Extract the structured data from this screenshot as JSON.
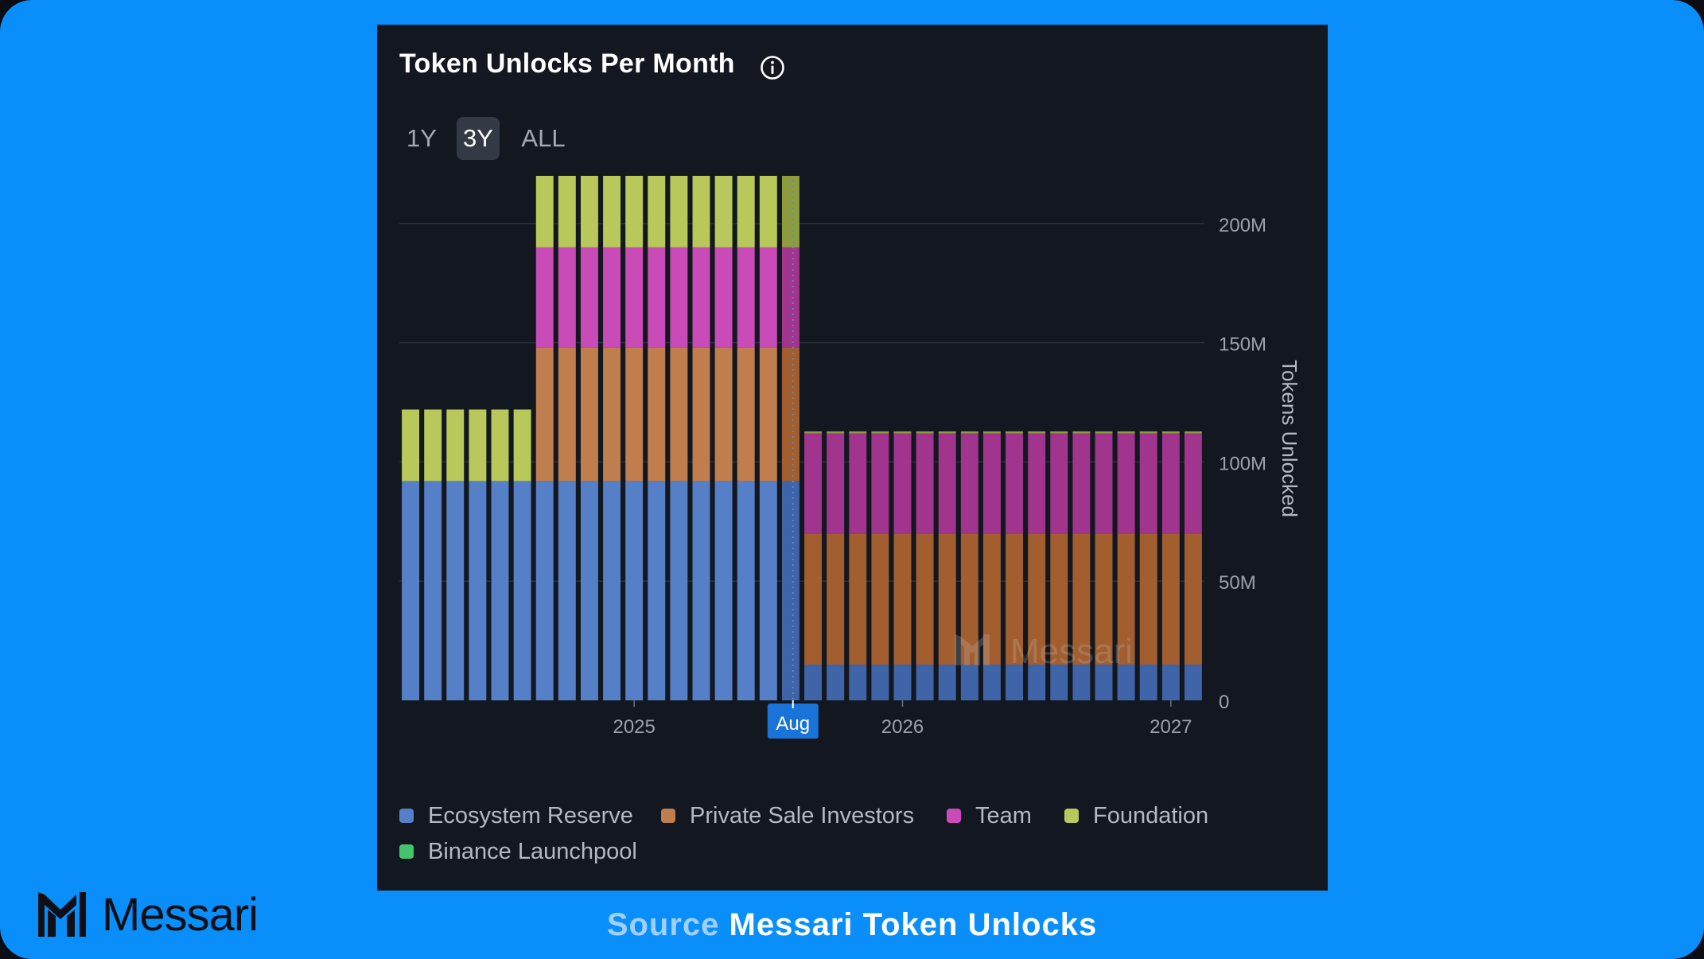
{
  "title": "Token Unlocks Per Month",
  "time_ranges": [
    "1Y",
    "3Y",
    "ALL"
  ],
  "selected_range": "3Y",
  "brand": {
    "name": "Messari",
    "color": "#0d1117"
  },
  "watermark": "Messari",
  "source": {
    "label": "Source",
    "name": "Messari Token Unlocks"
  },
  "colors": {
    "background": "#0a8ffa",
    "card": "#131820",
    "accent": "#1a73d9"
  },
  "chart_data": {
    "type": "bar",
    "stacked": true,
    "title": "Token Unlocks Per Month",
    "ylabel": "Tokens Unlocked",
    "ylim": [
      0,
      230
    ],
    "y_unit": "M",
    "yticks": [
      0,
      50,
      100,
      150,
      200
    ],
    "ytick_labels": [
      "0",
      "50M",
      "100M",
      "150M",
      "200M"
    ],
    "x_labels": [
      "2025",
      "2026",
      "2027"
    ],
    "x_label_positions": [
      10.5,
      22.5,
      34.5
    ],
    "current_marker": {
      "label": "Aug",
      "position": 17.6
    },
    "categories": [
      "2024-03",
      "2024-04",
      "2024-05",
      "2024-06",
      "2024-07",
      "2024-08",
      "2024-09",
      "2024-10",
      "2024-11",
      "2024-12",
      "2025-01",
      "2025-02",
      "2025-03",
      "2025-04",
      "2025-05",
      "2025-06",
      "2025-07",
      "2025-08",
      "2025-09",
      "2025-10",
      "2025-11",
      "2025-12",
      "2026-01",
      "2026-02",
      "2026-03",
      "2026-04",
      "2026-05",
      "2026-06",
      "2026-07",
      "2026-08",
      "2026-09",
      "2026-10",
      "2026-11",
      "2026-12",
      "2027-01",
      "2027-02"
    ],
    "legend": [
      "Ecosystem Reserve",
      "Private Sale Investors",
      "Team",
      "Foundation",
      "Binance Launchpool"
    ],
    "series": [
      {
        "name": "Ecosystem Reserve",
        "color": "#557fc6",
        "past_color": "#557fc6",
        "future_color": "#3f65a8",
        "values": [
          92,
          92,
          92,
          92,
          92,
          92,
          92,
          92,
          92,
          92,
          92,
          92,
          92,
          92,
          92,
          92,
          92,
          92,
          15,
          15,
          15,
          15,
          15,
          15,
          15,
          15,
          15,
          15,
          15,
          15,
          15,
          15,
          15,
          15,
          15,
          15
        ]
      },
      {
        "name": "Private Sale Investors",
        "color": "#c07d4e",
        "past_color": "#c07d4e",
        "future_color": "#a25e2e",
        "values": [
          0,
          0,
          0,
          0,
          0,
          0,
          56,
          56,
          56,
          56,
          56,
          56,
          56,
          56,
          56,
          56,
          56,
          56,
          55,
          55,
          55,
          55,
          55,
          55,
          55,
          55,
          55,
          55,
          55,
          55,
          55,
          55,
          55,
          55,
          55,
          55
        ]
      },
      {
        "name": "Team",
        "color": "#c94bb7",
        "past_color": "#c94bb7",
        "future_color": "#a1358e",
        "values": [
          0,
          0,
          0,
          0,
          0,
          0,
          42,
          42,
          42,
          42,
          42,
          42,
          42,
          42,
          42,
          42,
          42,
          42,
          42,
          42,
          42,
          42,
          42,
          42,
          42,
          42,
          42,
          42,
          42,
          42,
          42,
          42,
          42,
          42,
          42,
          42
        ]
      },
      {
        "name": "Foundation",
        "color": "#b9c85a",
        "past_color": "#b9c85a",
        "future_color": "#8e9c3e",
        "values": [
          30,
          30,
          30,
          30,
          30,
          30,
          30,
          30,
          30,
          30,
          30,
          30,
          30,
          30,
          30,
          30,
          30,
          30,
          0.8,
          0.8,
          0.8,
          0.8,
          0.8,
          0.8,
          0.8,
          0.8,
          0.8,
          0.8,
          0.8,
          0.8,
          0.8,
          0.8,
          0.8,
          0.8,
          0.8,
          0.8
        ]
      },
      {
        "name": "Binance Launchpool",
        "color": "#43c46c",
        "past_color": "#43c46c",
        "future_color": "#2f9a52",
        "values": [
          0,
          0,
          0,
          0,
          0,
          0,
          0,
          0,
          0,
          0,
          0,
          0,
          0,
          0,
          0,
          0,
          0,
          0,
          0,
          0,
          0,
          0,
          0,
          0,
          0,
          0,
          0,
          0,
          0,
          0,
          0,
          0,
          0,
          0,
          0,
          0
        ]
      }
    ],
    "future_start_index": 17
  }
}
